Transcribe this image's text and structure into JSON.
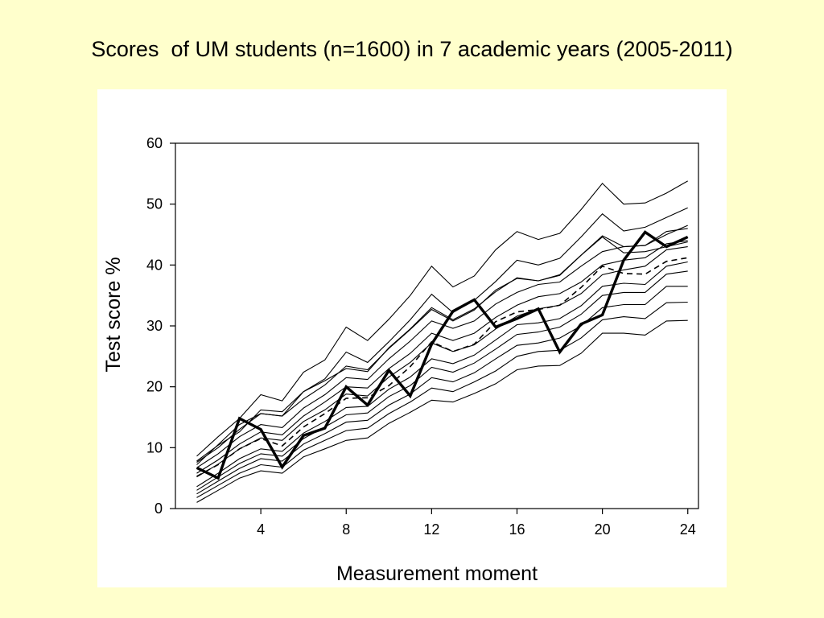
{
  "slide": {
    "title": "Scores  of UM students (n=1600) in 7 academic years (2005-2011)",
    "background_color": "#FFFFCC"
  },
  "chart_data": {
    "type": "line",
    "xlabel": "Measurement moment",
    "ylabel": "Test score %",
    "xlim": [
      0,
      24.5
    ],
    "ylim": [
      0,
      60
    ],
    "x_ticks": [
      4,
      8,
      12,
      16,
      20,
      24
    ],
    "y_ticks": [
      0,
      10,
      20,
      30,
      40,
      50,
      60
    ],
    "grid": false,
    "x": [
      1,
      2,
      3,
      4,
      5,
      6,
      7,
      8,
      9,
      10,
      11,
      12,
      13,
      14,
      15,
      16,
      17,
      18,
      19,
      20,
      21,
      22,
      23,
      24
    ],
    "percentile_lines": [
      [
        1.0,
        3.0,
        5.0,
        6.2,
        5.8,
        8.5,
        9.8,
        11.2,
        11.6,
        14.0,
        15.8,
        17.8,
        17.5,
        18.9,
        20.5,
        22.8,
        23.4,
        23.5,
        25.5,
        28.8,
        28.8,
        28.5,
        30.8,
        30.9
      ],
      [
        1.8,
        3.8,
        5.8,
        7.2,
        6.8,
        9.6,
        11.2,
        12.8,
        13.2,
        15.6,
        17.5,
        19.8,
        19.2,
        20.8,
        22.6,
        25.0,
        25.8,
        26.0,
        28.0,
        31.0,
        31.5,
        31.2,
        33.8,
        33.9
      ],
      [
        2.4,
        4.5,
        6.6,
        8.2,
        7.8,
        10.6,
        12.3,
        14.2,
        14.5,
        17.0,
        18.8,
        21.5,
        20.8,
        22.3,
        24.6,
        26.8,
        27.2,
        28.0,
        30.0,
        33.0,
        33.5,
        33.5,
        36.5,
        36.5
      ],
      [
        3.0,
        5.2,
        7.4,
        9.0,
        8.6,
        11.5,
        13.4,
        15.4,
        15.7,
        18.4,
        20.2,
        23.2,
        22.4,
        23.9,
        26.2,
        28.6,
        29.0,
        29.8,
        31.9,
        35.0,
        35.5,
        35.5,
        38.5,
        39.0
      ],
      [
        3.6,
        5.8,
        8.2,
        9.8,
        9.4,
        12.4,
        14.3,
        16.6,
        16.8,
        19.6,
        21.6,
        24.6,
        23.8,
        25.2,
        27.7,
        30.2,
        30.5,
        31.2,
        33.3,
        36.5,
        37.0,
        36.8,
        39.8,
        40.5
      ],
      [
        5.2,
        7.3,
        9.8,
        11.6,
        11.2,
        14.3,
        16.2,
        18.8,
        18.5,
        21.6,
        24.0,
        27.2,
        25.8,
        26.9,
        29.5,
        31.6,
        32.8,
        33.4,
        35.3,
        38.4,
        39.2,
        39.8,
        42.5,
        43.0
      ],
      [
        5.8,
        8.0,
        10.6,
        12.6,
        12.1,
        15.2,
        17.5,
        20.0,
        19.8,
        23.0,
        25.5,
        28.8,
        27.6,
        28.8,
        31.4,
        33.4,
        34.8,
        35.3,
        37.2,
        40.0,
        40.8,
        41.2,
        43.5,
        44.0
      ],
      [
        6.7,
        9.0,
        11.8,
        13.8,
        13.3,
        16.5,
        18.7,
        21.5,
        21.2,
        24.6,
        27.5,
        30.8,
        29.6,
        30.8,
        33.6,
        35.5,
        36.8,
        37.2,
        39.8,
        42.2,
        43.0,
        43.2,
        45.5,
        46.0
      ],
      [
        7.6,
        10.0,
        13.0,
        15.6,
        15.2,
        18.0,
        20.3,
        23.4,
        22.8,
        26.3,
        29.4,
        32.7,
        30.8,
        32.6,
        35.9,
        37.8,
        37.4,
        38.3,
        41.6,
        44.6,
        42.0,
        42.2,
        43.0,
        43.8
      ],
      [
        7.2,
        10.5,
        13.8,
        15.6,
        15.2,
        19.2,
        21.0,
        23.0,
        22.5,
        26.4,
        29.5,
        33.0,
        31.0,
        32.8,
        35.6,
        37.9,
        37.4,
        38.4,
        41.6,
        44.8,
        43.0,
        43.2,
        45.0,
        46.5
      ],
      [
        7.8,
        10.4,
        12.6,
        16.2,
        15.9,
        19.2,
        21.3,
        25.7,
        24.0,
        27.4,
        31.0,
        35.2,
        32.2,
        34.2,
        37.3,
        40.8,
        40.0,
        41.1,
        44.6,
        48.4,
        45.6,
        46.2,
        47.8,
        49.4
      ],
      [
        8.6,
        11.8,
        14.8,
        18.7,
        17.7,
        22.4,
        24.4,
        29.8,
        27.6,
        31.1,
        35.0,
        39.8,
        36.4,
        38.2,
        42.5,
        45.5,
        44.2,
        45.2,
        49.1,
        53.4,
        50.0,
        50.2,
        51.8,
        53.8
      ]
    ],
    "median": [
      5.3,
      7.2,
      9.8,
      11.5,
      10.3,
      13.4,
      15.6,
      18.1,
      18.2,
      20.2,
      23.3,
      27.4,
      25.8,
      27.0,
      30.7,
      32.3,
      32.7,
      33.4,
      36.3,
      39.8,
      38.6,
      38.5,
      40.6,
      41.2
    ],
    "cohort": [
      6.7,
      5.0,
      14.8,
      13.0,
      6.8,
      12.0,
      13.2,
      20.0,
      17.0,
      22.7,
      18.5,
      27.0,
      32.4,
      34.3,
      29.8,
      31.2,
      32.8,
      25.7,
      30.3,
      31.8,
      40.8,
      45.4,
      43.0,
      44.6
    ],
    "style": {
      "percentile_color": "#000000",
      "median_dash": "dashed",
      "cohort_weight": "bold"
    }
  }
}
